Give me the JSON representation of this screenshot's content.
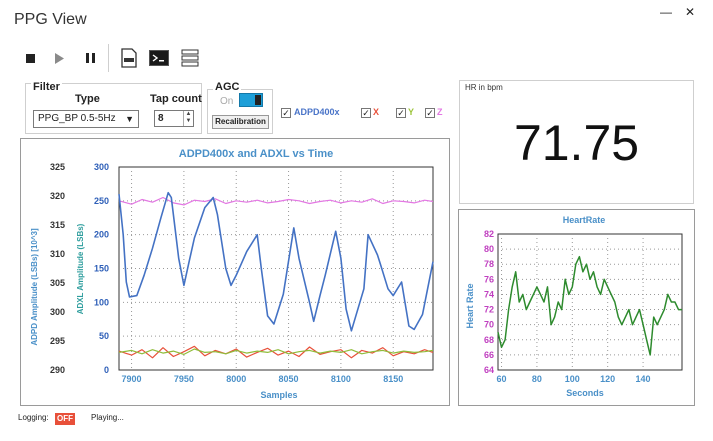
{
  "window": {
    "title": "PPG View"
  },
  "filter": {
    "group_label": "Filter",
    "type_label": "Type",
    "type_value": "PPG_BP 0.5-5Hz",
    "tap_label": "Tap count",
    "tap_value": "8"
  },
  "agc": {
    "label": "AGC",
    "state_label": "On",
    "recal_label": "Recalibration"
  },
  "channels": {
    "adpd": "ADPD400x",
    "x": "X",
    "y": "Y",
    "z": "Z"
  },
  "hr": {
    "label": "HR in bpm",
    "value": "71.75"
  },
  "status": {
    "logging_label": "Logging:",
    "logging_value": "OFF",
    "state": "Playing..."
  },
  "colors": {
    "accent": "#1e9fd8",
    "adpd_line": "#4472c4",
    "x_line": "#e8503a",
    "y_line": "#8fbc3a",
    "z_line": "#e377e3",
    "hr_line": "#2e8b2e",
    "title_blue": "#4a90c8"
  },
  "chart_data": [
    {
      "type": "line",
      "title": "ADPD400x and ADXL vs Time",
      "xlabel": "Samples",
      "ylabel_left": "ADPD Amplitude (LSBs) [10^3]",
      "ylabel_right": "ADXL Amplitude (LSBs)",
      "xlim": [
        7888,
        8188
      ],
      "xticks": [
        7900,
        7950,
        8000,
        8050,
        8100,
        8150
      ],
      "ylim_adxl": [
        0,
        300
      ],
      "yticks_adxl": [
        0,
        50,
        100,
        150,
        200,
        250,
        300
      ],
      "ylim_adpd": [
        290,
        325
      ],
      "yticks_adpd": [
        290,
        295,
        300,
        305,
        310,
        315,
        320,
        325
      ],
      "grid": true,
      "series": [
        {
          "name": "ADPD400x",
          "x": [
            7888,
            7892,
            7895,
            7898,
            7905,
            7912,
            7920,
            7928,
            7935,
            7938,
            7945,
            7950,
            7955,
            7960,
            7970,
            7978,
            7982,
            7990,
            7995,
            8000,
            8010,
            8020,
            8024,
            8030,
            8036,
            8045,
            8055,
            8060,
            8070,
            8074,
            8080,
            8085,
            8095,
            8100,
            8105,
            8110,
            8122,
            8126,
            8135,
            8138,
            8145,
            8150,
            8158,
            8165,
            8170,
            8178,
            8188
          ],
          "y": [
            260,
            200,
            130,
            108,
            110,
            140,
            180,
            225,
            262,
            255,
            165,
            125,
            160,
            195,
            240,
            255,
            230,
            150,
            125,
            140,
            175,
            200,
            150,
            80,
            68,
            112,
            210,
            165,
            100,
            72,
            110,
            140,
            205,
            165,
            90,
            58,
            120,
            200,
            170,
            155,
            120,
            110,
            130,
            65,
            60,
            82,
            160
          ]
        },
        {
          "name": "Z",
          "x": [
            7888,
            7900,
            7910,
            7920,
            7930,
            7940,
            7950,
            7960,
            7970,
            7980,
            7990,
            8000,
            8010,
            8020,
            8030,
            8040,
            8050,
            8060,
            8070,
            8080,
            8090,
            8100,
            8110,
            8120,
            8130,
            8140,
            8150,
            8160,
            8170,
            8180,
            8188
          ],
          "y": [
            250,
            245,
            252,
            248,
            255,
            247,
            244,
            251,
            249,
            253,
            246,
            250,
            248,
            251,
            247,
            249,
            252,
            250,
            246,
            249,
            251,
            247,
            250,
            248,
            253,
            246,
            250,
            249,
            247,
            251,
            249
          ]
        },
        {
          "name": "X",
          "x": [
            7888,
            7900,
            7910,
            7920,
            7930,
            7940,
            7950,
            7960,
            7970,
            7980,
            7990,
            8000,
            8010,
            8020,
            8030,
            8040,
            8050,
            8060,
            8070,
            8080,
            8090,
            8100,
            8110,
            8120,
            8130,
            8140,
            8150,
            8160,
            8170,
            8180,
            8188
          ],
          "y": [
            28,
            22,
            30,
            18,
            33,
            20,
            27,
            35,
            21,
            29,
            24,
            31,
            19,
            26,
            32,
            22,
            28,
            20,
            34,
            23,
            27,
            30,
            18,
            29,
            25,
            33,
            21,
            27,
            24,
            30,
            26
          ]
        },
        {
          "name": "Y",
          "x": [
            7888,
            7900,
            7910,
            7920,
            7930,
            7940,
            7950,
            7960,
            7970,
            7980,
            7990,
            8000,
            8010,
            8020,
            8030,
            8040,
            8050,
            8060,
            8070,
            8080,
            8090,
            8100,
            8110,
            8120,
            8130,
            8140,
            8150,
            8160,
            8170,
            8180,
            8188
          ],
          "y": [
            26,
            29,
            24,
            30,
            25,
            28,
            23,
            31,
            26,
            27,
            24,
            29,
            25,
            28,
            26,
            30,
            24,
            27,
            29,
            25,
            28,
            26,
            30,
            24,
            27,
            29,
            25,
            28,
            26,
            27,
            29
          ]
        }
      ]
    },
    {
      "type": "line",
      "title": "HeartRate",
      "xlabel": "Seconds",
      "ylabel": "Heart Rate",
      "xlim": [
        58,
        162
      ],
      "xticks": [
        60,
        80,
        100,
        120,
        140
      ],
      "ylim": [
        64,
        82
      ],
      "yticks": [
        64,
        66,
        68,
        70,
        72,
        74,
        76,
        78,
        80,
        82
      ],
      "grid": true,
      "series": [
        {
          "name": "HR",
          "x": [
            58,
            60,
            62,
            64,
            66,
            68,
            70,
            72,
            74,
            76,
            78,
            80,
            82,
            84,
            86,
            88,
            90,
            92,
            94,
            96,
            98,
            100,
            102,
            104,
            106,
            108,
            110,
            112,
            114,
            116,
            118,
            120,
            122,
            124,
            126,
            128,
            130,
            132,
            134,
            136,
            138,
            140,
            142,
            144,
            146,
            148,
            150,
            152,
            154,
            156,
            158,
            160,
            162
          ],
          "y": [
            69,
            67,
            68,
            72,
            75,
            77,
            73,
            74,
            72,
            73,
            74,
            75,
            74,
            73,
            75,
            70,
            71,
            73,
            72,
            76,
            74,
            75,
            78,
            79,
            77,
            78,
            76,
            77,
            75,
            74,
            76,
            75,
            74,
            73,
            71,
            70,
            71,
            72,
            70,
            71,
            72,
            70,
            68,
            66,
            71,
            70,
            71,
            72,
            74,
            73,
            73,
            72,
            72
          ]
        }
      ]
    }
  ]
}
